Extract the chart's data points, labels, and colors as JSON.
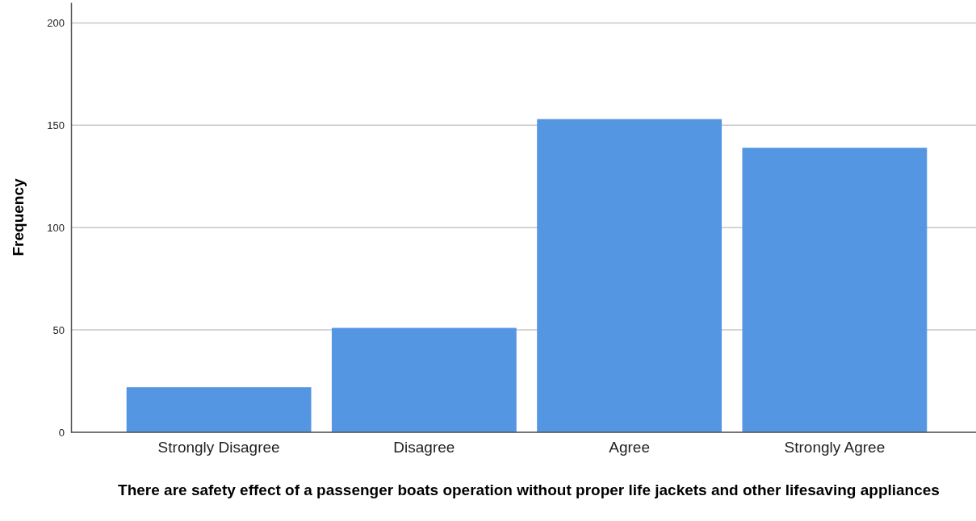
{
  "chart_data": {
    "type": "bar",
    "xlabel": "There are safety effect of a passenger boats operation without proper life jackets and other lifesaving appliances",
    "ylabel": "Frequency",
    "categories": [
      "Strongly Disagree",
      "Disagree",
      "Agree",
      "Strongly Agree"
    ],
    "values": [
      22,
      51,
      153,
      139
    ],
    "color": "#5596e3",
    "ylim": [
      0,
      210
    ],
    "yticks": [
      0,
      50,
      100,
      150,
      200
    ],
    "grid": "y"
  }
}
